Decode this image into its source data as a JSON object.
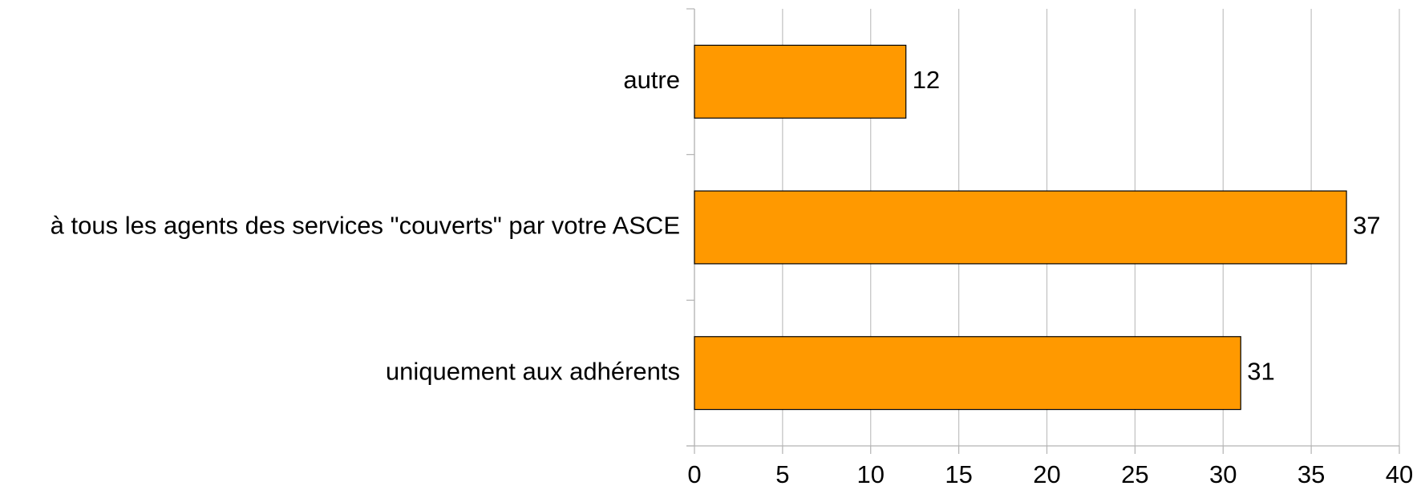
{
  "chart_data": {
    "type": "hbar",
    "categories": [
      "autre",
      "à tous les agents des services \"couverts\" par votre ASCE",
      "uniquement aux adhérents"
    ],
    "values": [
      12,
      37,
      31
    ],
    "color": "#ff9900",
    "xlim": [
      0,
      40
    ],
    "xticks": [
      0,
      5,
      10,
      15,
      20,
      25,
      30,
      35,
      40
    ],
    "grid": true
  }
}
